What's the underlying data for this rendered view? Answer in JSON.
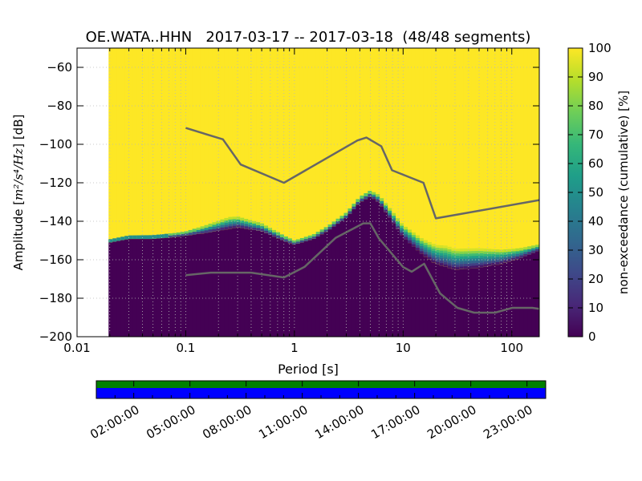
{
  "chart_data": {
    "type": "heatmap",
    "title": "OE.WATA..HHN   2017-03-17 -- 2017-03-18  (48/48 segments)",
    "xlabel": "Period [s]",
    "ylabel_prefix": "Amplitude [",
    "ylabel_unit": "m²/s⁴/Hz",
    "ylabel_suffix": "] [dB]",
    "xscale": "log",
    "xlim": [
      0.01,
      179
    ],
    "ylim": [
      -200,
      -50
    ],
    "x_ticks": [
      {
        "value": 0.01,
        "label": "0.01"
      },
      {
        "value": 0.1,
        "label": "0.1"
      },
      {
        "value": 1,
        "label": "1"
      },
      {
        "value": 10,
        "label": "10"
      },
      {
        "value": 100,
        "label": "100"
      }
    ],
    "y_ticks": [
      {
        "value": -60,
        "label": "−60"
      },
      {
        "value": -80,
        "label": "−80"
      },
      {
        "value": -100,
        "label": "−100"
      },
      {
        "value": -120,
        "label": "−120"
      },
      {
        "value": -140,
        "label": "−140"
      },
      {
        "value": -160,
        "label": "−160"
      },
      {
        "value": -180,
        "label": "−180"
      },
      {
        "value": -200,
        "label": "−200"
      }
    ],
    "grid": true,
    "data_x_min": 0.0195,
    "colors": {
      "low": "#440154",
      "high": "#fde725",
      "curve": "#666666",
      "background": "#ffffff"
    },
    "boundary_db": [
      [
        0.0195,
        -151
      ],
      [
        0.03,
        -149
      ],
      [
        0.05,
        -149
      ],
      [
        0.08,
        -148
      ],
      [
        0.15,
        -146
      ],
      [
        0.3,
        -143
      ],
      [
        0.5,
        -145
      ],
      [
        0.8,
        -150
      ],
      [
        1.0,
        -152
      ],
      [
        1.5,
        -149
      ],
      [
        2.0,
        -145
      ],
      [
        3.0,
        -138
      ],
      [
        4.0,
        -130
      ],
      [
        5.0,
        -127
      ],
      [
        6.0,
        -130
      ],
      [
        8.0,
        -140
      ],
      [
        10.0,
        -148
      ],
      [
        15.0,
        -157
      ],
      [
        20.0,
        -162
      ],
      [
        30.0,
        -165
      ],
      [
        50.0,
        -164
      ],
      [
        80.0,
        -162
      ],
      [
        120.0,
        -159
      ],
      [
        179.0,
        -155
      ]
    ],
    "transition_width_db": [
      [
        0.0195,
        1.5
      ],
      [
        0.1,
        2.0
      ],
      [
        0.25,
        6.0
      ],
      [
        0.5,
        4.0
      ],
      [
        1.0,
        2.0
      ],
      [
        3.0,
        2.5
      ],
      [
        5.0,
        3.0
      ],
      [
        8.0,
        5.0
      ],
      [
        15.0,
        8.0
      ],
      [
        25.0,
        11.0
      ],
      [
        50.0,
        10.0
      ],
      [
        100.0,
        6.0
      ],
      [
        179.0,
        3.0
      ]
    ],
    "nhnm": [
      [
        0.1,
        -91.5
      ],
      [
        0.22,
        -97.4
      ],
      [
        0.32,
        -110.5
      ],
      [
        0.8,
        -120.0
      ],
      [
        3.8,
        -98.0
      ],
      [
        4.6,
        -96.5
      ],
      [
        6.3,
        -101.0
      ],
      [
        7.9,
        -113.5
      ],
      [
        15.4,
        -120.0
      ],
      [
        20.0,
        -138.5
      ],
      [
        179.0,
        -129.0
      ]
    ],
    "nlnm": [
      [
        0.1,
        -168.0
      ],
      [
        0.17,
        -166.7
      ],
      [
        0.4,
        -166.7
      ],
      [
        0.8,
        -169.2
      ],
      [
        1.24,
        -163.7
      ],
      [
        2.4,
        -148.6
      ],
      [
        4.3,
        -141.1
      ],
      [
        5.0,
        -141.1
      ],
      [
        6.0,
        -149.0
      ],
      [
        10.0,
        -163.8
      ],
      [
        12.0,
        -166.2
      ],
      [
        15.6,
        -162.1
      ],
      [
        21.9,
        -177.5
      ],
      [
        31.6,
        -185.0
      ],
      [
        45.0,
        -187.5
      ],
      [
        70.0,
        -187.5
      ],
      [
        101.0,
        -185.0
      ],
      [
        154.0,
        -185.0
      ],
      [
        179.0,
        -185.5
      ]
    ]
  },
  "colorbar": {
    "label": "non-exceedance (cumulative) [%]",
    "range": [
      0,
      100
    ],
    "ticks": [
      {
        "value": 0,
        "label": "0"
      },
      {
        "value": 10,
        "label": "10"
      },
      {
        "value": 20,
        "label": "20"
      },
      {
        "value": 30,
        "label": "30"
      },
      {
        "value": 40,
        "label": "40"
      },
      {
        "value": 50,
        "label": "50"
      },
      {
        "value": 60,
        "label": "60"
      },
      {
        "value": 70,
        "label": "70"
      },
      {
        "value": 80,
        "label": "80"
      },
      {
        "value": 90,
        "label": "90"
      },
      {
        "value": 100,
        "label": "100"
      }
    ]
  },
  "coverage": {
    "range_hours": [
      0,
      24
    ],
    "data_color": "#0000ff",
    "gap_color": "#ffffff",
    "overlap_color": "#008000",
    "tick_labels": [
      "02:00:00",
      "05:00:00",
      "08:00:00",
      "11:00:00",
      "14:00:00",
      "17:00:00",
      "20:00:00",
      "23:00:00"
    ],
    "tick_hours": [
      2,
      5,
      8,
      11,
      14,
      17,
      20,
      23
    ],
    "minor_tick_hours": [
      0,
      24
    ]
  }
}
